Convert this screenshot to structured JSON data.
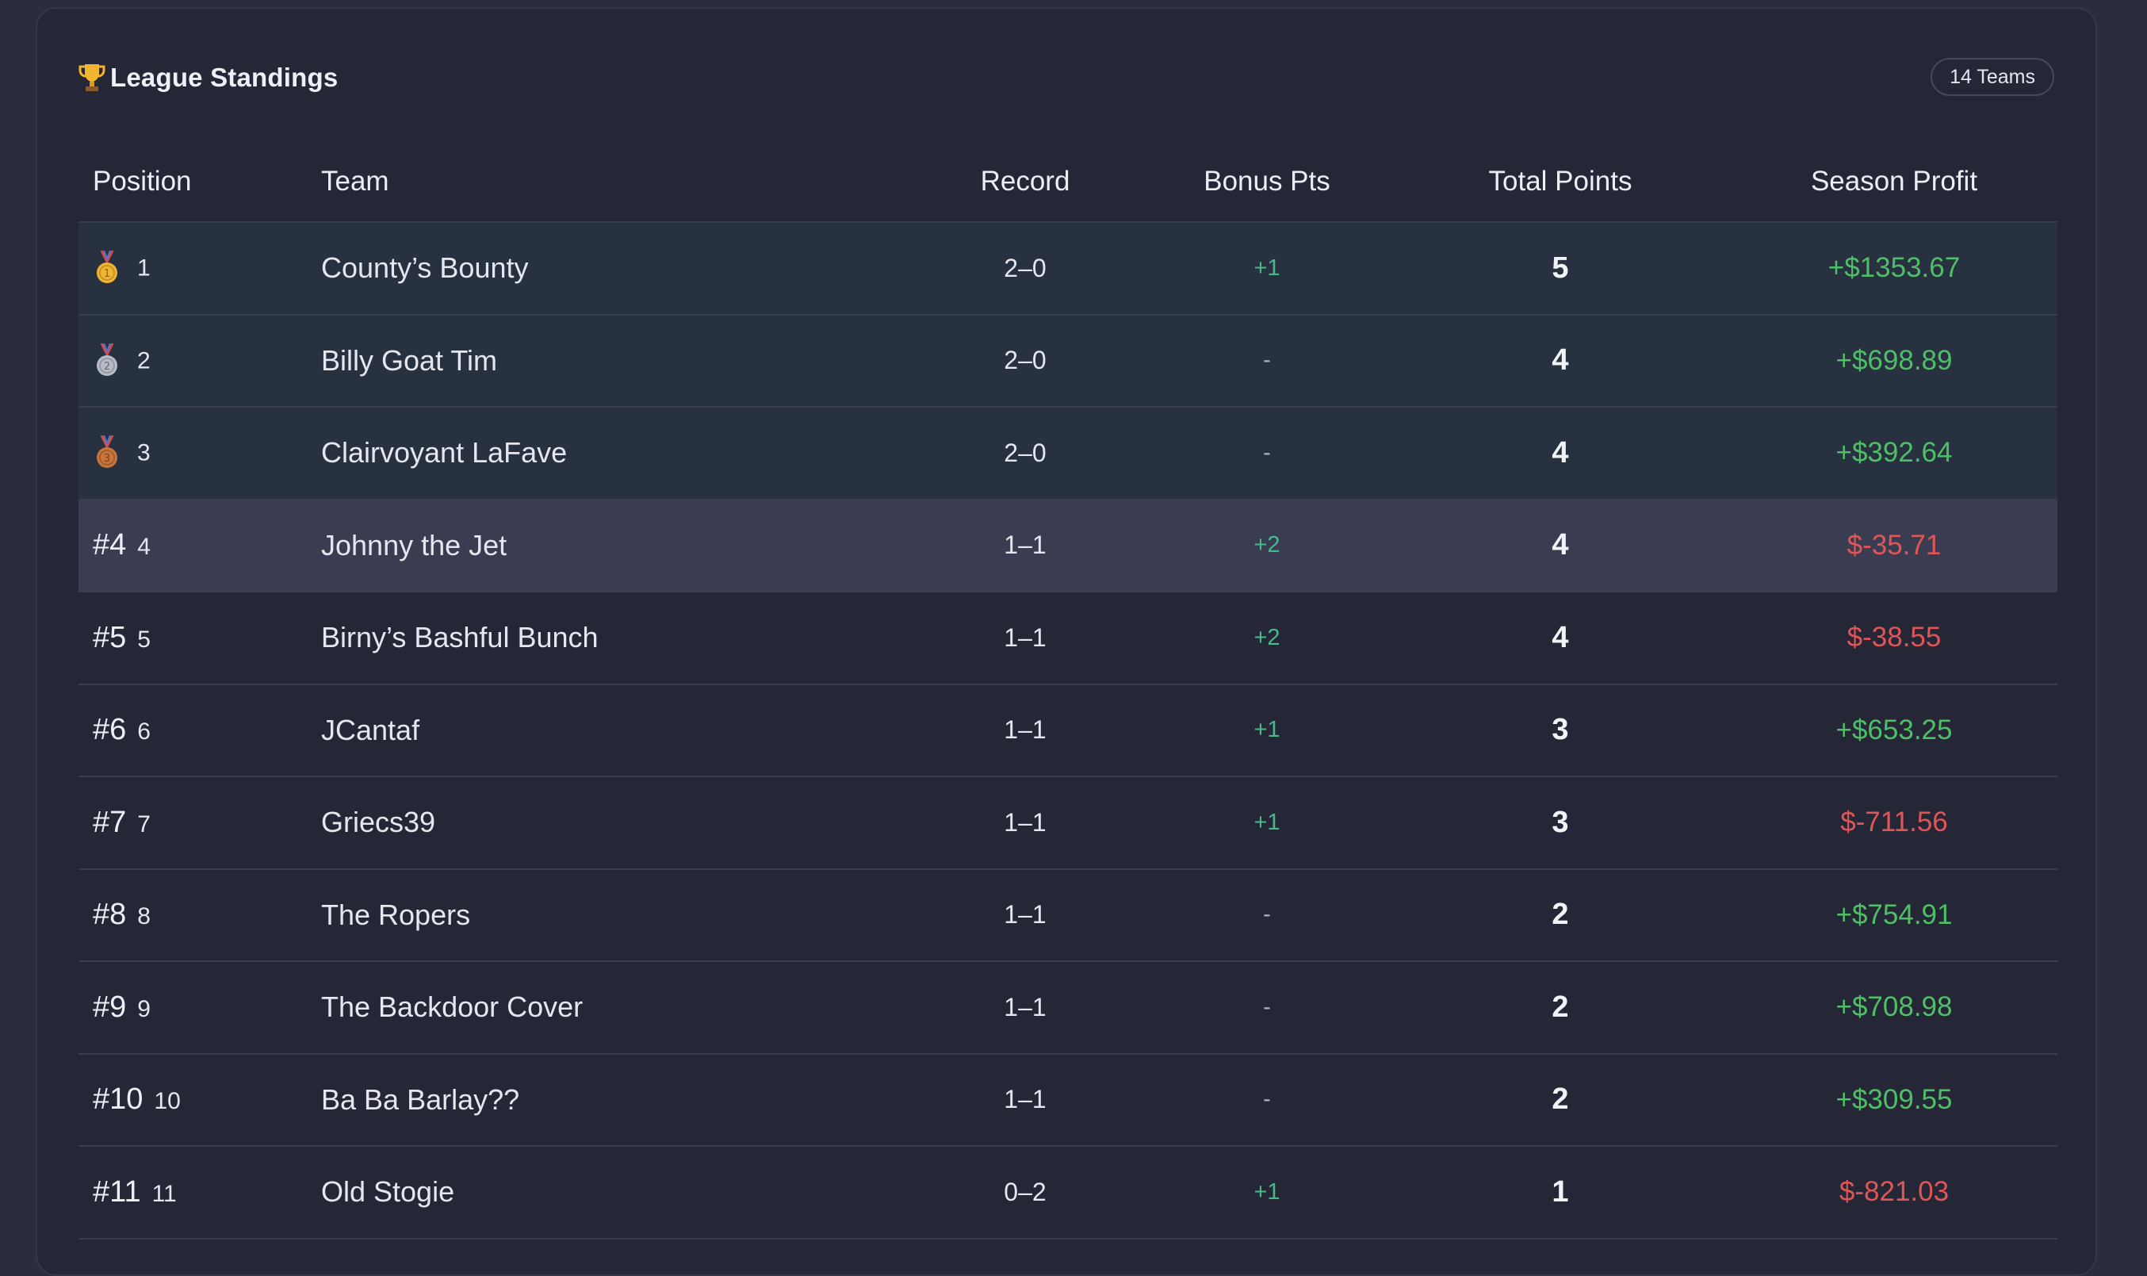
{
  "header": {
    "title": "League Standings",
    "teams_badge": "14 Teams",
    "title_icon": "trophy-icon"
  },
  "table": {
    "columns": [
      "Position",
      "Team",
      "Record",
      "Bonus Pts",
      "Total Points",
      "Season Profit"
    ],
    "rows": [
      {
        "medal": "gold",
        "tag": "",
        "rank": "1",
        "team": "County’s Bounty",
        "record": "2–0",
        "bonus": "+1",
        "total": "5",
        "profit": "+$1353.67",
        "profit_sign": "pos"
      },
      {
        "medal": "silver",
        "tag": "",
        "rank": "2",
        "team": "Billy Goat Tim",
        "record": "2–0",
        "bonus": "-",
        "total": "4",
        "profit": "+$698.89",
        "profit_sign": "pos"
      },
      {
        "medal": "bronze",
        "tag": "",
        "rank": "3",
        "team": "Clairvoyant LaFave",
        "record": "2–0",
        "bonus": "-",
        "total": "4",
        "profit": "+$392.64",
        "profit_sign": "pos"
      },
      {
        "medal": "",
        "tag": "#4",
        "rank": "4",
        "team": "Johnny the Jet",
        "record": "1–1",
        "bonus": "+2",
        "total": "4",
        "profit": "$-35.71",
        "profit_sign": "neg"
      },
      {
        "medal": "",
        "tag": "#5",
        "rank": "5",
        "team": "Birny’s Bashful Bunch",
        "record": "1–1",
        "bonus": "+2",
        "total": "4",
        "profit": "$-38.55",
        "profit_sign": "neg"
      },
      {
        "medal": "",
        "tag": "#6",
        "rank": "6",
        "team": "JCantaf",
        "record": "1–1",
        "bonus": "+1",
        "total": "3",
        "profit": "+$653.25",
        "profit_sign": "pos"
      },
      {
        "medal": "",
        "tag": "#7",
        "rank": "7",
        "team": "Griecs39",
        "record": "1–1",
        "bonus": "+1",
        "total": "3",
        "profit": "$-711.56",
        "profit_sign": "neg"
      },
      {
        "medal": "",
        "tag": "#8",
        "rank": "8",
        "team": "The Ropers",
        "record": "1–1",
        "bonus": "-",
        "total": "2",
        "profit": "+$754.91",
        "profit_sign": "pos"
      },
      {
        "medal": "",
        "tag": "#9",
        "rank": "9",
        "team": "The Backdoor Cover",
        "record": "1–1",
        "bonus": "-",
        "total": "2",
        "profit": "+$708.98",
        "profit_sign": "pos"
      },
      {
        "medal": "",
        "tag": "#10",
        "rank": "10",
        "team": "Ba Ba Barlay??",
        "record": "1–1",
        "bonus": "-",
        "total": "2",
        "profit": "+$309.55",
        "profit_sign": "pos"
      },
      {
        "medal": "",
        "tag": "#11",
        "rank": "11",
        "team": "Old Stogie",
        "record": "0–2",
        "bonus": "+1",
        "total": "1",
        "profit": "$-821.03",
        "profit_sign": "neg"
      }
    ]
  },
  "colors": {
    "positive": "#4fbf67",
    "negative": "#e05555",
    "bonus": "#48b98a",
    "gold": "#f2b530",
    "silver": "#b9bcc6",
    "bronze": "#c9753a"
  }
}
